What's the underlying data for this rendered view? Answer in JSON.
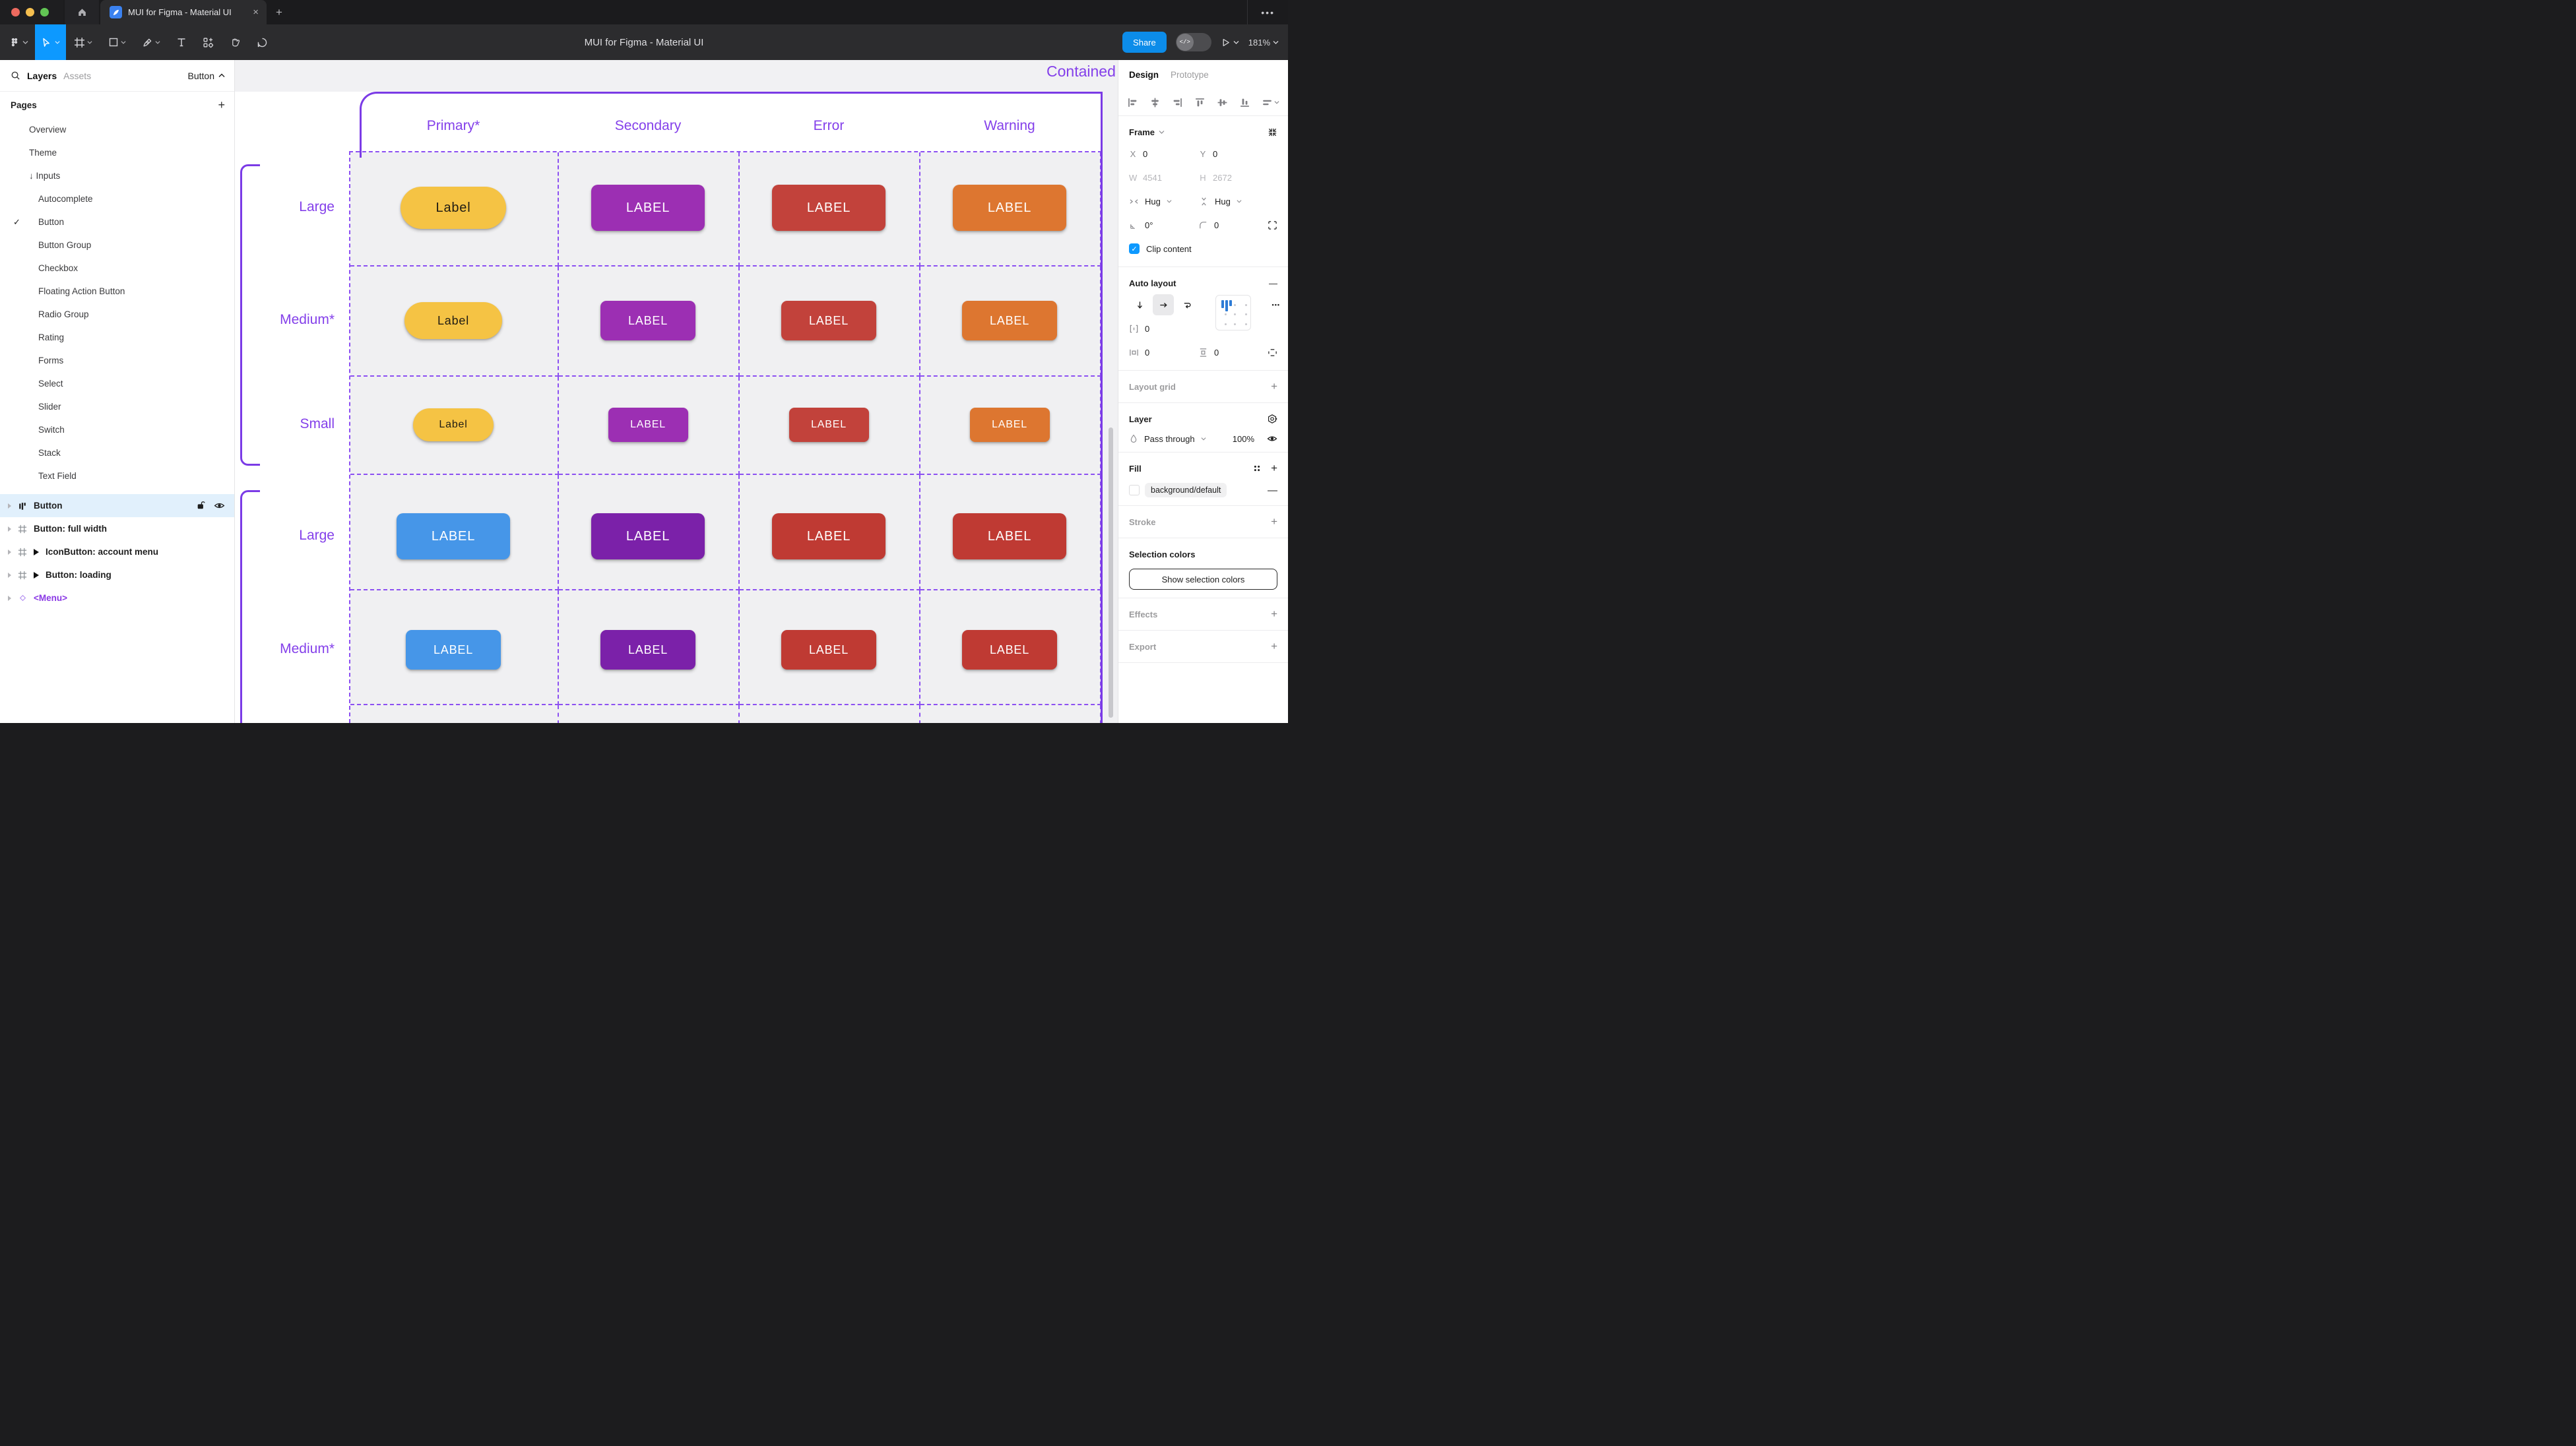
{
  "colors": {
    "accent_blue": "#0D99FF",
    "figma_purple": "#8440EA",
    "btn_yellow": "#F5C344",
    "btn_purple": "#9C2FB3",
    "btn_red": "#C2423B",
    "btn_orange": "#DD7630",
    "btn_blue": "#4696E8",
    "btn_deep_purple": "#7B21A9",
    "btn_dark_red": "#BF3A33"
  },
  "window": {
    "tab_title": "MUI for Figma - Material UI",
    "close_icon": "×",
    "new_tab_icon": "+",
    "overflow_icon": "•••"
  },
  "toolbar": {
    "doc_title": "MUI for Figma - Material UI",
    "share_label": "Share",
    "devmode_icon": "</>",
    "zoom_level": "181%"
  },
  "sidebar": {
    "layers_tab": "Layers",
    "assets_tab": "Assets",
    "page_selector": "Button",
    "pages_header": "Pages",
    "add_page_icon": "+",
    "check_icon": "✓",
    "pages": [
      {
        "label": "Overview",
        "indent": 1
      },
      {
        "label": "Theme",
        "indent": 1
      },
      {
        "label": "↓ Inputs",
        "indent": 1
      },
      {
        "label": "Autocomplete",
        "indent": 2
      },
      {
        "label": "Button",
        "indent": 2,
        "checked": true
      },
      {
        "label": "Button Group",
        "indent": 2
      },
      {
        "label": "Checkbox",
        "indent": 2
      },
      {
        "label": "Floating Action Button",
        "indent": 2
      },
      {
        "label": "Radio Group",
        "indent": 2
      },
      {
        "label": "Rating",
        "indent": 2
      },
      {
        "label": "Forms",
        "indent": 2
      },
      {
        "label": "Select",
        "indent": 2
      },
      {
        "label": "Slider",
        "indent": 2
      },
      {
        "label": "Switch",
        "indent": 2
      },
      {
        "label": "Stack",
        "indent": 2
      },
      {
        "label": "Text Field",
        "indent": 2
      }
    ],
    "layers": [
      {
        "label": "Button",
        "icon": "autolayout",
        "selected": true
      },
      {
        "label": "Button: full width",
        "icon": "frame"
      },
      {
        "label": "IconButton: account menu",
        "icon": "frame",
        "marker": true
      },
      {
        "label": "Button: loading",
        "icon": "frame",
        "marker": true
      },
      {
        "label": "<Menu>",
        "icon": "component",
        "purple": true
      }
    ]
  },
  "canvas": {
    "frame_title": "Contained",
    "columns": [
      "Primary*",
      "Secondary",
      "Error",
      "Warning"
    ],
    "row_labels": [
      "Large",
      "Medium*",
      "Small",
      "Large",
      "Medium*"
    ],
    "buttons": [
      {
        "row": 0,
        "col": 0,
        "label": "Label",
        "variant": "yellow",
        "size": "lg",
        "pill": true
      },
      {
        "row": 0,
        "col": 1,
        "label": "LABEL",
        "variant": "purple",
        "size": "lg"
      },
      {
        "row": 0,
        "col": 2,
        "label": "LABEL",
        "variant": "red",
        "size": "lg"
      },
      {
        "row": 0,
        "col": 3,
        "label": "LABEL",
        "variant": "orange",
        "size": "lg"
      },
      {
        "row": 1,
        "col": 0,
        "label": "Label",
        "variant": "yellow",
        "size": "md",
        "pill": true
      },
      {
        "row": 1,
        "col": 1,
        "label": "LABEL",
        "variant": "purple",
        "size": "md"
      },
      {
        "row": 1,
        "col": 2,
        "label": "LABEL",
        "variant": "red",
        "size": "md"
      },
      {
        "row": 1,
        "col": 3,
        "label": "LABEL",
        "variant": "orange",
        "size": "md"
      },
      {
        "row": 2,
        "col": 0,
        "label": "Label",
        "variant": "yellow",
        "size": "sm",
        "pill": true
      },
      {
        "row": 2,
        "col": 1,
        "label": "LABEL",
        "variant": "purple",
        "size": "sm"
      },
      {
        "row": 2,
        "col": 2,
        "label": "LABEL",
        "variant": "red",
        "size": "sm"
      },
      {
        "row": 2,
        "col": 3,
        "label": "LABEL",
        "variant": "orange",
        "size": "sm"
      },
      {
        "row": 3,
        "col": 0,
        "label": "LABEL",
        "variant": "blue",
        "size": "lg"
      },
      {
        "row": 3,
        "col": 1,
        "label": "LABEL",
        "variant": "deep_purple",
        "size": "lg"
      },
      {
        "row": 3,
        "col": 2,
        "label": "LABEL",
        "variant": "dark_red",
        "size": "lg"
      },
      {
        "row": 3,
        "col": 3,
        "label": "LABEL",
        "variant": "dark_red",
        "size": "lg"
      },
      {
        "row": 4,
        "col": 0,
        "label": "LABEL",
        "variant": "blue",
        "size": "md"
      },
      {
        "row": 4,
        "col": 1,
        "label": "LABEL",
        "variant": "deep_purple",
        "size": "md"
      },
      {
        "row": 4,
        "col": 2,
        "label": "LABEL",
        "variant": "dark_red",
        "size": "md"
      },
      {
        "row": 4,
        "col": 3,
        "label": "LABEL",
        "variant": "dark_red",
        "size": "md"
      }
    ]
  },
  "inspector": {
    "design_tab": "Design",
    "prototype_tab": "Prototype",
    "frame": {
      "title": "Frame",
      "x_label": "X",
      "x": "0",
      "y_label": "Y",
      "y": "0",
      "w_label": "W",
      "w": "4541",
      "h_label": "H",
      "h": "2672",
      "hug_h": "Hug",
      "hug_v": "Hug",
      "angle": "0°",
      "radius": "0",
      "clip_label": "Clip content"
    },
    "auto_layout": {
      "title": "Auto layout",
      "remove_icon": "—",
      "gap": "0",
      "pad_h": "0",
      "pad_v": "0",
      "more_icon": "•••"
    },
    "layout_grid": {
      "title": "Layout grid",
      "add_icon": "+"
    },
    "layer": {
      "title": "Layer",
      "blend_mode": "Pass through",
      "opacity": "100%"
    },
    "fill": {
      "title": "Fill",
      "style_name": "background/default",
      "remove_icon": "—",
      "add_icon": "+"
    },
    "stroke": {
      "title": "Stroke",
      "add_icon": "+"
    },
    "selection_colors": {
      "title": "Selection colors",
      "button_label": "Show selection colors"
    },
    "effects": {
      "title": "Effects",
      "add_icon": "+"
    },
    "export": {
      "title": "Export",
      "add_icon": "+"
    }
  }
}
